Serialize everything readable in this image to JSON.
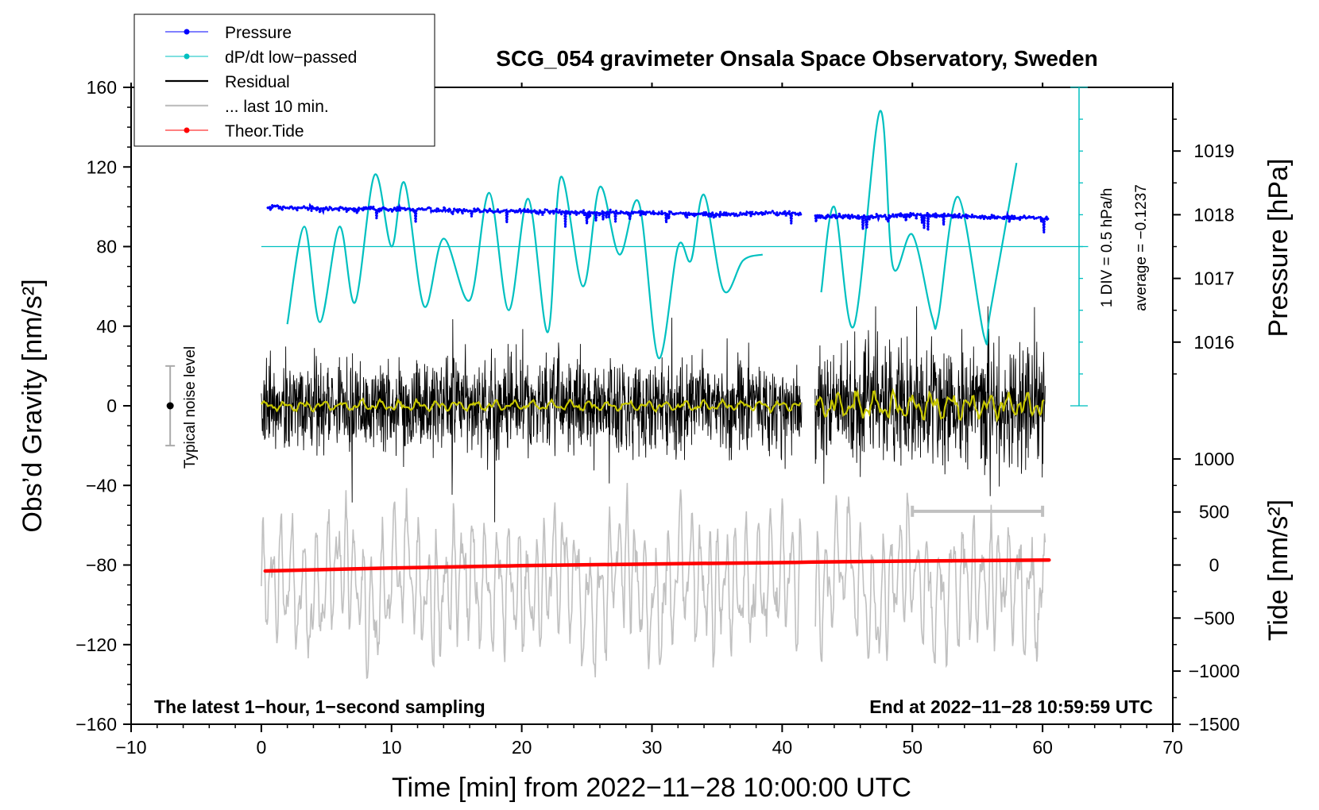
{
  "chart_data": {
    "type": "line",
    "title": "SCG_054 gravimeter Onsala Space Observatory, Sweden",
    "xlabel": "Time [min] from 2022−11−28 10:00:00 UTC",
    "ylabel_left": "Obs’d Gravity [nm/s²]",
    "ylabel_right_top": "Pressure [hPa]",
    "ylabel_right_bottom": "Tide [nm/s²]",
    "xlim": [
      -10,
      70
    ],
    "ylim": [
      -160,
      160
    ],
    "x_ticks": [
      -10,
      0,
      10,
      20,
      30,
      40,
      50,
      60,
      70
    ],
    "x_tick_labels": [
      "−10",
      "0",
      "10",
      "20",
      "30",
      "40",
      "50",
      "60",
      "70"
    ],
    "y_ticks": [
      160,
      120,
      80,
      40,
      0,
      -40,
      -80,
      -120,
      -160
    ],
    "y_tick_labels": [
      "160",
      "120",
      "80",
      "40",
      "0",
      "−40",
      "−80",
      "−120",
      "−160"
    ],
    "pressure_axis": {
      "ticks": [
        1019,
        1018,
        1017,
        1016
      ],
      "tick_labels": [
        "1019",
        "1018",
        "1017",
        "1016"
      ],
      "gravity_at_1018": 96,
      "nm_s2_per_hPa": 32
    },
    "tide_axis": {
      "ticks": [
        1000,
        500,
        0,
        -500,
        -1000,
        -1500
      ],
      "tick_labels": [
        "1000",
        "500",
        "0",
        "−500",
        "−1000",
        "−1500"
      ],
      "gravity_at_0": -80,
      "nm_s2_per_unit": 0.0533
    },
    "data_gap_minutes": [
      41.5,
      42.5
    ],
    "series": [
      {
        "name": "Pressure",
        "color": "#0000ff",
        "marker": "dot",
        "x": [
          0.5,
          5,
          10,
          15,
          20,
          25,
          30,
          35,
          41,
          42.5,
          47,
          50,
          55,
          60.5
        ],
        "y": [
          100,
          99,
          99,
          98,
          98,
          97,
          97,
          96,
          97,
          95,
          95,
          96,
          95,
          94
        ]
      },
      {
        "name": "dP/dt low−passed",
        "color": "#00c0c0",
        "marker": "dot",
        "baseline": 80,
        "x": [
          2,
          3.3,
          4.5,
          6,
          7.2,
          8.7,
          10,
          11,
          12.5,
          14,
          16,
          17.5,
          19,
          20.5,
          22,
          23,
          24.7,
          26,
          27.5,
          29,
          30.5,
          32,
          33,
          34,
          35.5,
          37,
          38.5,
          43,
          44,
          45.5,
          47.5,
          48.5,
          50,
          51.5,
          52,
          53.5,
          55.5,
          56,
          58
        ],
        "y": [
          41,
          90,
          42,
          90,
          52,
          116,
          80,
          112,
          50,
          84,
          53,
          107,
          48,
          104,
          37,
          115,
          60,
          110,
          76,
          102,
          24,
          80,
          73,
          106,
          58,
          73,
          76,
          57,
          100,
          40,
          148,
          70,
          86,
          45,
          45,
          105,
          35,
          48,
          122
        ]
      },
      {
        "name": "Residual",
        "color": "#000000",
        "mean": 0,
        "amplitude_nm_s2": 30
      },
      {
        "name": "... last 10 min.",
        "color": "#c0c0c0",
        "x_range_min": [
          50,
          60
        ],
        "level": -53
      },
      {
        "name": "Theor.Tide",
        "color": "#ff0000",
        "marker": "dot",
        "x": [
          0.3,
          10,
          20,
          30,
          41,
          42.5,
          50,
          60.5
        ],
        "y": [
          -83,
          -81.5,
          -80.3,
          -79.5,
          -78.7,
          -78.5,
          -78,
          -77.5
        ]
      }
    ],
    "smoothed_residual": {
      "color": "#c8c800",
      "mean": 0
    },
    "noise_level": {
      "label": "Typical noise level",
      "x": -7,
      "center": 0,
      "half_range": 20
    },
    "pressure_scale": {
      "div_label": "1 DIV = 0.5 hPa/h",
      "average_label": "average = −0.1237"
    },
    "annotations": {
      "bottom_left": "The latest 1−hour, 1−second sampling",
      "bottom_right": "End at 2022−11−28 10:59:59 UTC"
    },
    "legend": {
      "position": "top-left",
      "entries": [
        {
          "label": "Pressure",
          "color": "#0000ff",
          "style": "line-dot"
        },
        {
          "label": "dP/dt low−passed",
          "color": "#00c0c0",
          "style": "line-dot"
        },
        {
          "label": "Residual",
          "color": "#000000",
          "style": "line"
        },
        {
          "label": "... last 10 min.",
          "color": "#c0c0c0",
          "style": "line"
        },
        {
          "label": "Theor.Tide",
          "color": "#ff0000",
          "style": "line-dot"
        }
      ]
    }
  }
}
